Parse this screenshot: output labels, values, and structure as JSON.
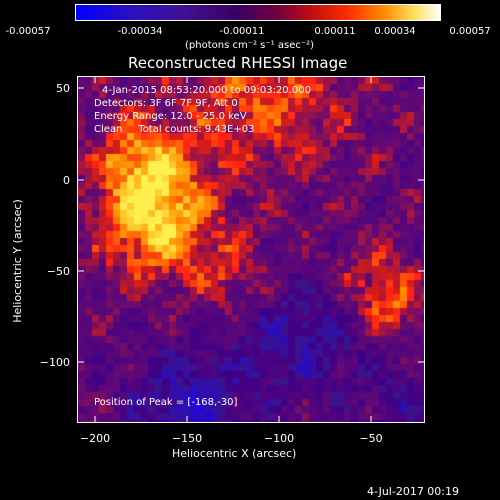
{
  "colorbar": {
    "ticks": [
      "-0.00057",
      "-0.00034",
      "-0.00011",
      "0.00011",
      "0.00034",
      "0.00057"
    ],
    "units": "(photons cm⁻² s⁻¹ asec⁻²)"
  },
  "title": "Reconstructed RHESSI Image",
  "overlay": {
    "time_range": "4-Jan-2015 08:53:20.000 to 09:03:20.000",
    "detectors": "Detectors: 3F 6F 7F 9F, Att 0",
    "energy": "Energy Range: 12.0 - 25.0 keV",
    "clean": "Clean     Total counts: 9.43E+03",
    "peak": "Position of Peak = [-168,-30]"
  },
  "axes": {
    "xlabel": "Heliocentric X (arcsec)",
    "ylabel": "Heliocentric Y (arcsec)",
    "xticks": [
      "−200",
      "−150",
      "−100",
      "−50"
    ],
    "yticks": [
      "50",
      "0",
      "−50",
      "−100"
    ]
  },
  "footer": {
    "timestamp": "4-Jul-2017 00:19"
  },
  "colors": {
    "background": "#000000",
    "cmap": [
      "#0000ff",
      "#400080",
      "#500070",
      "#b00030",
      "#ff2000",
      "#ff8000",
      "#ffd000",
      "#ffffe0"
    ]
  }
}
